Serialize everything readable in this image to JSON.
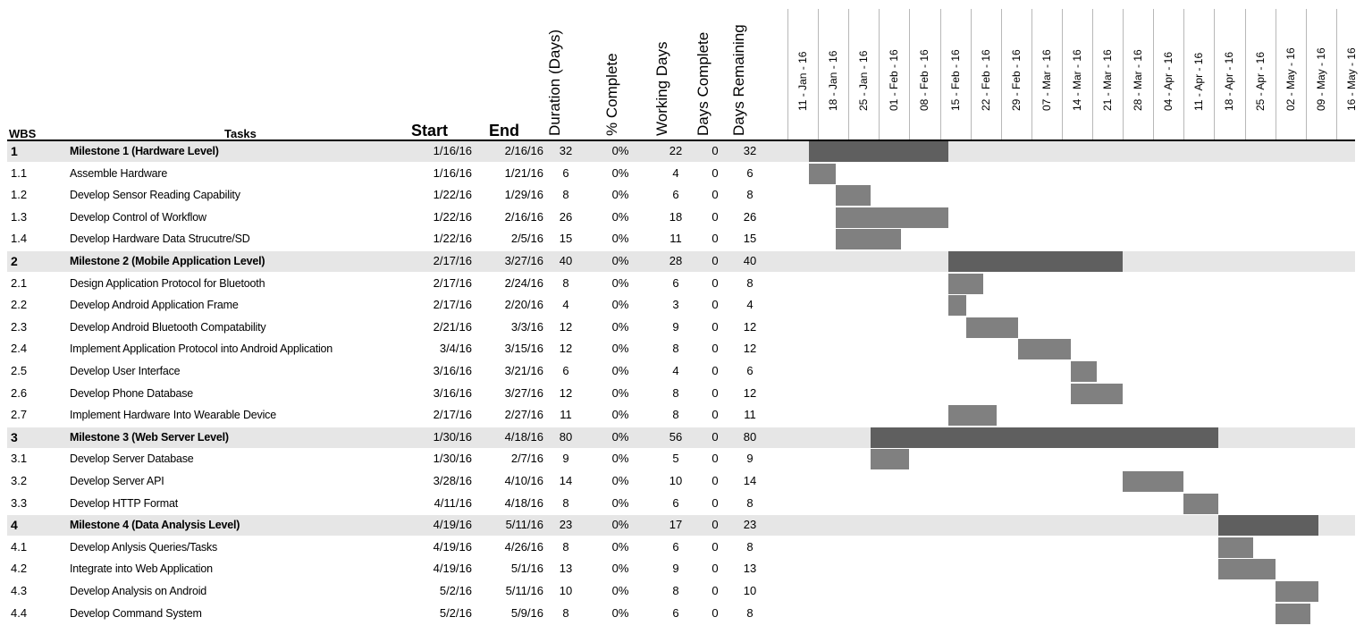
{
  "headers": {
    "wbs": "WBS",
    "tasks": "Tasks",
    "start": "Start",
    "end": "End",
    "duration": "Duration (Days)",
    "pct_complete": "% Complete",
    "working_days": "Working Days",
    "days_complete": "Days Complete",
    "days_remaining": "Days Remaining"
  },
  "colors": {
    "milestone_bar": "#5f5f5f",
    "task_bar": "#808080",
    "milestone_row_bg": "#e6e6e6"
  },
  "chart_data": {
    "type": "gantt",
    "weeks": [
      "11 - Jan - 16",
      "18 - Jan - 16",
      "25 - Jan - 16",
      "01 - Feb - 16",
      "08 - Feb - 16",
      "15 - Feb - 16",
      "22 - Feb - 16",
      "29 - Feb - 16",
      "07 - Mar - 16",
      "14 - Mar - 16",
      "21 - Mar - 16",
      "28 - Mar - 16",
      "04 - Apr - 16",
      "11 - Apr - 16",
      "18 - Apr - 16",
      "25 - Apr - 16",
      "02 - May - 16",
      "09 - May - 16",
      "16 - May - 16"
    ],
    "rows": [
      {
        "wbs": "1",
        "task": "Milestone 1 (Hardware Level)",
        "start": "1/16/16",
        "end": "2/16/16",
        "duration": "32",
        "pct": "0%",
        "working": "22",
        "done": "0",
        "remaining": "32",
        "milestone": true
      },
      {
        "wbs": "1.1",
        "task": "Assemble Hardware",
        "start": "1/16/16",
        "end": "1/21/16",
        "duration": "6",
        "pct": "0%",
        "working": "4",
        "done": "0",
        "remaining": "6",
        "milestone": false
      },
      {
        "wbs": "1.2",
        "task": "Develop Sensor Reading Capability",
        "start": "1/22/16",
        "end": "1/29/16",
        "duration": "8",
        "pct": "0%",
        "working": "6",
        "done": "0",
        "remaining": "8",
        "milestone": false
      },
      {
        "wbs": "1.3",
        "task": "Develop Control of Workflow",
        "start": "1/22/16",
        "end": "2/16/16",
        "duration": "26",
        "pct": "0%",
        "working": "18",
        "done": "0",
        "remaining": "26",
        "milestone": false
      },
      {
        "wbs": "1.4",
        "task": "Develop Hardware Data Strucutre/SD",
        "start": "1/22/16",
        "end": "2/5/16",
        "duration": "15",
        "pct": "0%",
        "working": "11",
        "done": "0",
        "remaining": "15",
        "milestone": false
      },
      {
        "wbs": "2",
        "task": "Milestone 2 (Mobile Application Level)",
        "start": "2/17/16",
        "end": "3/27/16",
        "duration": "40",
        "pct": "0%",
        "working": "28",
        "done": "0",
        "remaining": "40",
        "milestone": true
      },
      {
        "wbs": "2.1",
        "task": "Design Application Protocol for Bluetooth",
        "start": "2/17/16",
        "end": "2/24/16",
        "duration": "8",
        "pct": "0%",
        "working": "6",
        "done": "0",
        "remaining": "8",
        "milestone": false
      },
      {
        "wbs": "2.2",
        "task": "Develop Android Application Frame",
        "start": "2/17/16",
        "end": "2/20/16",
        "duration": "4",
        "pct": "0%",
        "working": "3",
        "done": "0",
        "remaining": "4",
        "milestone": false
      },
      {
        "wbs": "2.3",
        "task": "Develop Android Bluetooth Compatability",
        "start": "2/21/16",
        "end": "3/3/16",
        "duration": "12",
        "pct": "0%",
        "working": "9",
        "done": "0",
        "remaining": "12",
        "milestone": false
      },
      {
        "wbs": "2.4",
        "task": "Implement Application Protocol into Android Application",
        "start": "3/4/16",
        "end": "3/15/16",
        "duration": "12",
        "pct": "0%",
        "working": "8",
        "done": "0",
        "remaining": "12",
        "milestone": false
      },
      {
        "wbs": "2.5",
        "task": "Develop User Interface",
        "start": "3/16/16",
        "end": "3/21/16",
        "duration": "6",
        "pct": "0%",
        "working": "4",
        "done": "0",
        "remaining": "6",
        "milestone": false
      },
      {
        "wbs": "2.6",
        "task": "Develop Phone Database",
        "start": "3/16/16",
        "end": "3/27/16",
        "duration": "12",
        "pct": "0%",
        "working": "8",
        "done": "0",
        "remaining": "12",
        "milestone": false
      },
      {
        "wbs": "2.7",
        "task": "Implement Hardware Into Wearable Device",
        "start": "2/17/16",
        "end": "2/27/16",
        "duration": "11",
        "pct": "0%",
        "working": "8",
        "done": "0",
        "remaining": "11",
        "milestone": false
      },
      {
        "wbs": "3",
        "task": "Milestone 3 (Web Server Level)",
        "start": "1/30/16",
        "end": "4/18/16",
        "duration": "80",
        "pct": "0%",
        "working": "56",
        "done": "0",
        "remaining": "80",
        "milestone": true
      },
      {
        "wbs": "3.1",
        "task": "Develop Server Database",
        "start": "1/30/16",
        "end": "2/7/16",
        "duration": "9",
        "pct": "0%",
        "working": "5",
        "done": "0",
        "remaining": "9",
        "milestone": false
      },
      {
        "wbs": "3.2",
        "task": "Develop Server API",
        "start": "3/28/16",
        "end": "4/10/16",
        "duration": "14",
        "pct": "0%",
        "working": "10",
        "done": "0",
        "remaining": "14",
        "milestone": false
      },
      {
        "wbs": "3.3",
        "task": "Develop HTTP Format",
        "start": "4/11/16",
        "end": "4/18/16",
        "duration": "8",
        "pct": "0%",
        "working": "6",
        "done": "0",
        "remaining": "8",
        "milestone": false
      },
      {
        "wbs": "4",
        "task": "Milestone 4 (Data Analysis Level)",
        "start": "4/19/16",
        "end": "5/11/16",
        "duration": "23",
        "pct": "0%",
        "working": "17",
        "done": "0",
        "remaining": "23",
        "milestone": true
      },
      {
        "wbs": "4.1",
        "task": "Develop Anlysis Queries/Tasks",
        "start": "4/19/16",
        "end": "4/26/16",
        "duration": "8",
        "pct": "0%",
        "working": "6",
        "done": "0",
        "remaining": "8",
        "milestone": false
      },
      {
        "wbs": "4.2",
        "task": "Integrate into Web Application",
        "start": "4/19/16",
        "end": "5/1/16",
        "duration": "13",
        "pct": "0%",
        "working": "9",
        "done": "0",
        "remaining": "13",
        "milestone": false
      },
      {
        "wbs": "4.3",
        "task": "Develop Analysis on Android",
        "start": "5/2/16",
        "end": "5/11/16",
        "duration": "10",
        "pct": "0%",
        "working": "8",
        "done": "0",
        "remaining": "10",
        "milestone": false
      },
      {
        "wbs": "4.4",
        "task": "Develop Command System",
        "start": "5/2/16",
        "end": "5/9/16",
        "duration": "8",
        "pct": "0%",
        "working": "6",
        "done": "0",
        "remaining": "8",
        "milestone": false
      }
    ]
  }
}
